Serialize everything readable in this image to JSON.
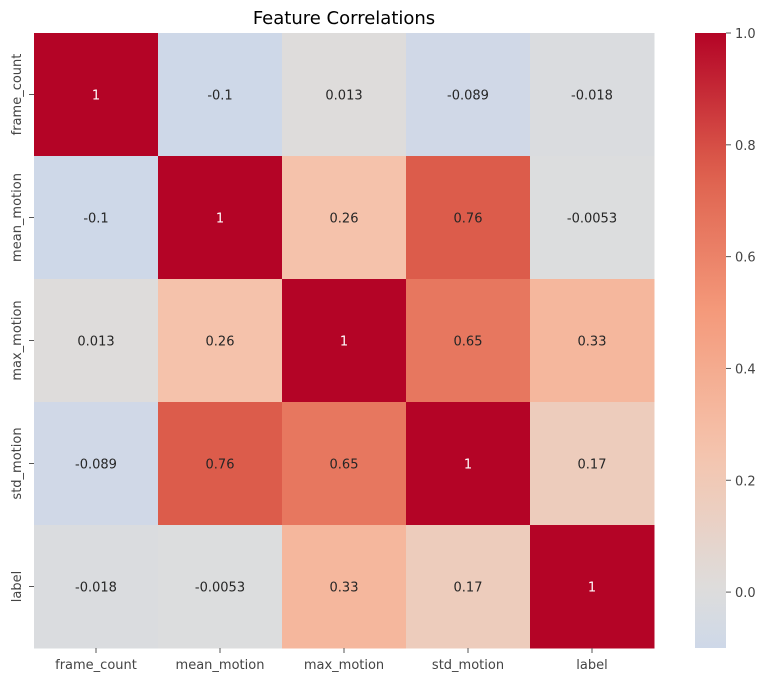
{
  "chart_data": {
    "type": "heatmap",
    "title": "Feature Correlations",
    "xlabel": "",
    "ylabel": "",
    "x_labels": [
      "frame_count",
      "mean_motion",
      "max_motion",
      "std_motion",
      "label"
    ],
    "y_labels": [
      "frame_count",
      "mean_motion",
      "max_motion",
      "std_motion",
      "label"
    ],
    "values": [
      [
        1,
        -0.1,
        0.013,
        -0.089,
        -0.018
      ],
      [
        -0.1,
        1,
        0.26,
        0.76,
        -0.0053
      ],
      [
        0.013,
        0.26,
        1,
        0.65,
        0.33
      ],
      [
        -0.089,
        0.76,
        0.65,
        1,
        0.17
      ],
      [
        -0.018,
        -0.0053,
        0.33,
        0.17,
        1
      ]
    ],
    "annotations": [
      [
        "1",
        "-0.1",
        "0.013",
        "-0.089",
        "-0.018"
      ],
      [
        "-0.1",
        "1",
        "0.26",
        "0.76",
        "-0.0053"
      ],
      [
        "0.013",
        "0.26",
        "1",
        "0.65",
        "0.33"
      ],
      [
        "-0.089",
        "0.76",
        "0.65",
        "1",
        "0.17"
      ],
      [
        "-0.018",
        "-0.0053",
        "0.33",
        "0.17",
        "1"
      ]
    ],
    "colormap": "coolwarm",
    "center": 0,
    "vmin": -0.1,
    "vmax": 1.0,
    "colorbar": {
      "ticks": [
        0.0,
        0.2,
        0.4,
        0.6,
        0.8,
        1.0
      ],
      "tick_labels": [
        "0.0",
        "0.2",
        "0.4",
        "0.6",
        "0.8",
        "1.0"
      ]
    },
    "grid": false,
    "legend": "colorbar-right"
  }
}
